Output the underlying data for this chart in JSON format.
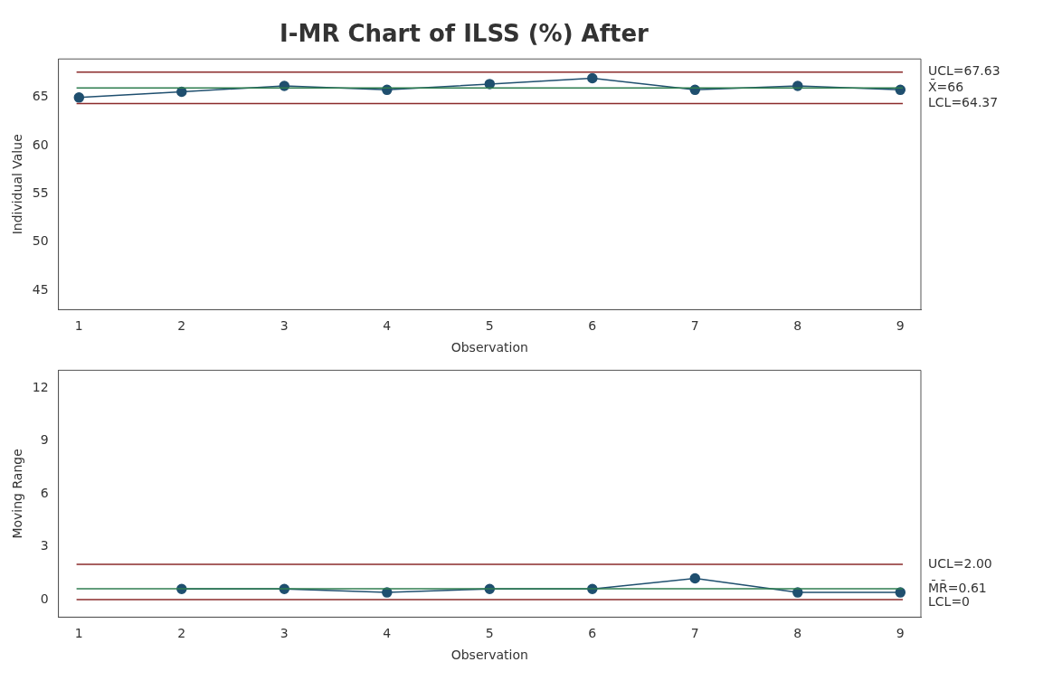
{
  "chart_data": [
    {
      "type": "line",
      "title": "I-MR Chart of ILSS (%) After",
      "xlabel": "Observation",
      "ylabel": "Individual Value",
      "x": [
        1,
        2,
        3,
        4,
        5,
        6,
        7,
        8,
        9
      ],
      "series": [
        {
          "color": "#1f4f6f",
          "values": [
            65.0,
            65.6,
            66.2,
            65.8,
            66.4,
            67.0,
            65.8,
            66.2,
            65.8
          ]
        }
      ],
      "xlim": [
        0.8,
        9.2
      ],
      "xticks": [
        1,
        2,
        3,
        4,
        5,
        6,
        7,
        8,
        9
      ],
      "ylim": [
        43,
        69
      ],
      "yticks": [
        45,
        50,
        55,
        60,
        65
      ],
      "grid": false,
      "legend": false,
      "marker": "circle",
      "line_style": "solid",
      "ref_lines": [
        {
          "axis": "y",
          "value": 67.63,
          "label": "UCL=67.63",
          "color": "#8b2b2b"
        },
        {
          "axis": "y",
          "value": 66,
          "label": "X̄=66",
          "color": "#2e7d4f"
        },
        {
          "axis": "y",
          "value": 64.37,
          "label": "LCL=64.37",
          "color": "#8b2b2b"
        }
      ]
    },
    {
      "type": "line",
      "xlabel": "Observation",
      "ylabel": "Moving Range",
      "series": [
        {
          "color": "#1f4f6f",
          "x": [
            2,
            3,
            4,
            5,
            6,
            7,
            8,
            9
          ],
          "values": [
            0.6,
            0.6,
            0.4,
            0.6,
            0.6,
            1.2,
            0.4,
            0.4
          ]
        }
      ],
      "xlim": [
        0.8,
        9.2
      ],
      "xticks": [
        1,
        2,
        3,
        4,
        5,
        6,
        7,
        8,
        9
      ],
      "ylim": [
        -1,
        13
      ],
      "yticks": [
        0,
        3,
        6,
        9,
        12
      ],
      "grid": false,
      "legend": false,
      "marker": "circle",
      "line_style": "solid",
      "ref_lines": [
        {
          "axis": "y",
          "value": 2.0,
          "label": "UCL=2.00",
          "color": "#8b2b2b"
        },
        {
          "axis": "y",
          "value": 0.61,
          "label": "M̄R̄=0.61",
          "color": "#2e7d4f"
        },
        {
          "axis": "y",
          "value": 0,
          "label": "LCL=0",
          "color": "#8b2b2b"
        }
      ]
    }
  ]
}
